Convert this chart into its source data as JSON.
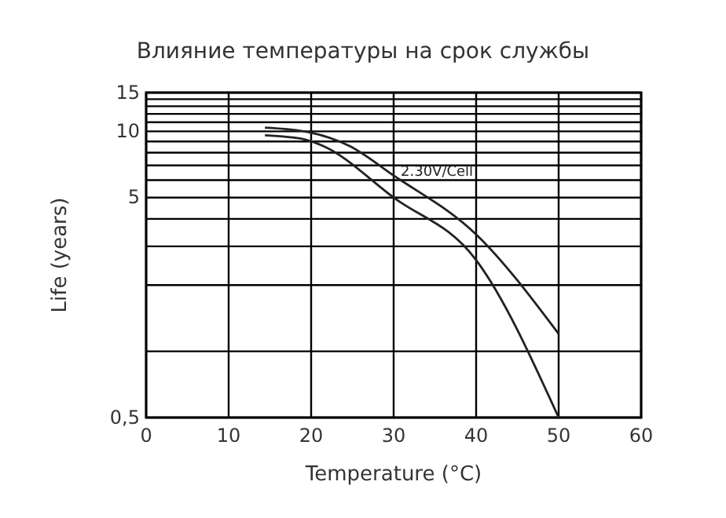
{
  "chart_data": {
    "type": "line",
    "title": "Влияние температуры на срок службы",
    "xlabel": "Temperature (°C)",
    "ylabel": "Life (years)",
    "xlim": [
      0,
      60
    ],
    "xticks": [
      0,
      10,
      20,
      30,
      40,
      50,
      60
    ],
    "log": "y",
    "ylim": [
      0.5,
      15
    ],
    "yticks": [
      {
        "value": 0.5,
        "label": "0,5"
      },
      {
        "value": 1,
        "label": null
      },
      {
        "value": 2,
        "label": null
      },
      {
        "value": 3,
        "label": null
      },
      {
        "value": 4,
        "label": null
      },
      5,
      {
        "value": 6,
        "label": null
      },
      {
        "value": 7,
        "label": null
      },
      {
        "value": 8,
        "label": null
      },
      {
        "value": 9,
        "label": null
      },
      10,
      {
        "value": 11,
        "label": null
      },
      {
        "value": 12,
        "label": null
      },
      {
        "value": 13,
        "label": null
      },
      {
        "value": 14,
        "label": null
      },
      15
    ],
    "grid": true,
    "series": [
      {
        "color": "#222222",
        "x": [
          14.4,
          19.8,
          24.6,
          30,
          40,
          50
        ],
        "values": [
          10.4,
          9.9,
          8.6,
          6.3,
          3.4,
          1.2
        ]
      },
      {
        "color": "#222222",
        "x": [
          14.4,
          19.2,
          21.4,
          30,
          40,
          50
        ],
        "values": [
          9.6,
          9.2,
          8.6,
          5,
          2.6,
          0.5
        ]
      }
    ],
    "annotations": [
      "2.30V/Cell"
    ]
  }
}
